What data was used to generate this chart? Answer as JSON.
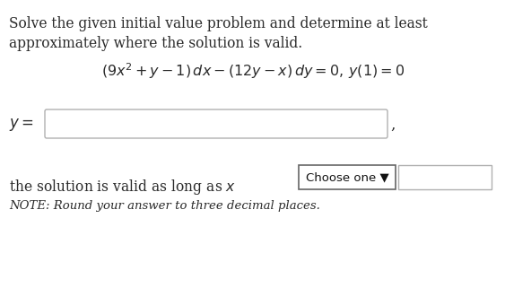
{
  "bg_color": "#ffffff",
  "line1": "Solve the given initial value problem and determine at least",
  "line2": "approximately where the solution is valid.",
  "equation": "$(9x^2 + y - 1)\\, dx - (12y - x)\\, dy = 0,\\, y(1) = 0$",
  "y_label": "$y = $",
  "bottom_text": "the solution is valid as long as $x$",
  "choose_label": "Choose one ▼",
  "note": "NOTE: Round your answer to three decimal places.",
  "text_color": "#2a2a2a",
  "box_edge_color": "#b0b0b0",
  "dropdown_edge_color": "#666666"
}
